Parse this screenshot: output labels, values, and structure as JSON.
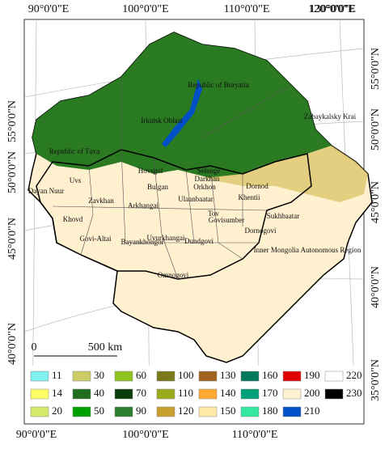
{
  "graticule": {
    "top": [
      "90°0'0\"E",
      "100°0'0\"E",
      "110°0'0\"E",
      "120°0'0\"E",
      "130°0'0\"E"
    ],
    "bottom": [
      "90°0'0\"E",
      "100°0'0\"E",
      "110°0'0\"E"
    ],
    "left": [
      "55°0'0\"N",
      "50°0'0\"N",
      "45°0'0\"N",
      "40°0'0\"N"
    ],
    "right": [
      "55°0'0\"N",
      "50°0'0\"N",
      "45°0'0\"N",
      "40°0'0\"N",
      "35°0'0\"N"
    ]
  },
  "regions": [
    "Republic of Buryatia",
    "Zabaykalsky Krai",
    "Irkutsk Oblast",
    "Republic of Tuva",
    "Uvs",
    "Hovsgol",
    "Selenge",
    "Darkhan",
    "Orkhon",
    "Bulgan",
    "Dornod",
    "Dayan Nuur",
    "Zavkhan",
    "Arkhangai",
    "Ulaanbaatar",
    "Khentii",
    "Khovd",
    "Tov",
    "Govisumber",
    "Sukhbaatar",
    "Govi-Altai",
    "Bayankhongor",
    "Uvurkhangai",
    "Dundgovi",
    "Dornogovi",
    "Inner Mongolia Autonomous Region",
    "Omnogovi"
  ],
  "scale_bar": {
    "start": "0",
    "end": "500 km"
  },
  "legend": [
    {
      "label": "11",
      "color": "#80f0f0"
    },
    {
      "label": "14",
      "color": "#ffff66"
    },
    {
      "label": "20",
      "color": "#d4e86a"
    },
    {
      "label": "30",
      "color": "#cccc66"
    },
    {
      "label": "40",
      "color": "#1e6e1e"
    },
    {
      "label": "50",
      "color": "#00a000"
    },
    {
      "label": "60",
      "color": "#8fc31f"
    },
    {
      "label": "70",
      "color": "#0a3d0a"
    },
    {
      "label": "90",
      "color": "#2e7d2e"
    },
    {
      "label": "100",
      "color": "#7a7a1a"
    },
    {
      "label": "110",
      "color": "#9aab1c"
    },
    {
      "label": "120",
      "color": "#c8a030"
    },
    {
      "label": "130",
      "color": "#a0641e"
    },
    {
      "label": "140",
      "color": "#ffaa33"
    },
    {
      "label": "150",
      "color": "#ffe8a8"
    },
    {
      "label": "160",
      "color": "#00785a"
    },
    {
      "label": "170",
      "color": "#00a078"
    },
    {
      "label": "180",
      "color": "#33e8a0"
    },
    {
      "label": "190",
      "color": "#e00000"
    },
    {
      "label": "200",
      "color": "#fff0d0"
    },
    {
      "label": "210",
      "color": "#0050c8"
    },
    {
      "label": "220",
      "color": "#ffffff"
    },
    {
      "label": "230",
      "color": "#000000"
    }
  ]
}
